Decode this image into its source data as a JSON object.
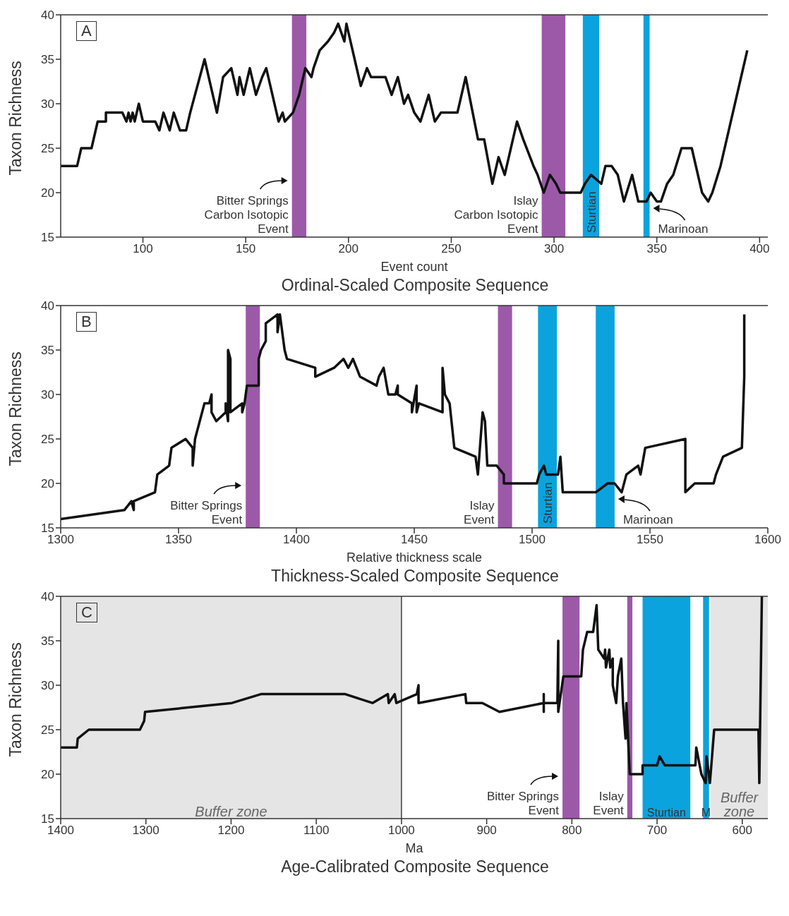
{
  "chart_data": [
    {
      "type": "line",
      "title": "Ordinal-Scaled Composite Sequence",
      "xlabel": "Event count",
      "ylabel": "Taxon Richness",
      "annotations": [
        "A"
      ],
      "xlim": [
        60,
        404
      ],
      "xticks": [
        100,
        150,
        200,
        250,
        300,
        350,
        400
      ],
      "ylim": [
        15,
        40
      ],
      "yticks": [
        15,
        20,
        25,
        30,
        35,
        40
      ],
      "series": [
        {
          "color": "#111111",
          "x": [
            60,
            68,
            70,
            75,
            78,
            82,
            82,
            90,
            92,
            93,
            94,
            95,
            96,
            98,
            100,
            106,
            108,
            110,
            113,
            115,
            118,
            121,
            123,
            130,
            136,
            139,
            143,
            146,
            147,
            149,
            152,
            155,
            158,
            160,
            166,
            168,
            169,
            173,
            176,
            179,
            182,
            183,
            186,
            190,
            193,
            195,
            198,
            199,
            206,
            209,
            211,
            218,
            221,
            224,
            227,
            229,
            232,
            235,
            239,
            242,
            245,
            253,
            257,
            263,
            266,
            270,
            273,
            276,
            282,
            285,
            290,
            292,
            295,
            298,
            301,
            303,
            313,
            315,
            318,
            323,
            325,
            328,
            331,
            334,
            338,
            341,
            345,
            347,
            350,
            352,
            355,
            358,
            362,
            367,
            372,
            375,
            377,
            381,
            394
          ],
          "values": [
            23,
            23,
            25,
            25,
            28,
            28,
            29,
            29,
            28,
            29,
            28,
            29,
            28,
            30,
            28,
            28,
            27,
            29,
            27,
            29,
            27,
            27,
            29,
            35,
            29,
            33,
            34,
            31,
            33,
            31,
            34,
            31,
            33,
            34,
            28,
            29,
            28,
            29,
            31,
            34,
            33,
            34,
            36,
            37,
            38,
            39,
            37,
            39,
            32,
            34,
            33,
            33,
            31,
            33,
            30,
            31,
            29,
            28,
            31,
            28,
            29,
            29,
            33,
            26,
            26,
            21,
            24,
            22,
            28,
            26,
            23,
            22,
            20,
            22,
            21,
            20,
            20,
            21,
            22,
            21,
            23,
            23,
            22,
            19,
            22,
            19,
            19,
            20,
            19,
            19,
            21,
            22,
            25,
            25,
            20,
            19,
            20,
            23,
            36
          ]
        }
      ],
      "bands": [
        {
          "axis": "x",
          "from": 172.5,
          "to": 179.5,
          "color": "#9c59a8",
          "label": "Bitter Springs\nCarbon Isotopic\nEvent"
        },
        {
          "axis": "x",
          "from": 294,
          "to": 305.5,
          "color": "#9c59a8",
          "label": "Islay\nCarbon Isotopic\nEvent"
        },
        {
          "axis": "x",
          "from": 314,
          "to": 322,
          "color": "#0ba3dd",
          "label": "Sturtian"
        },
        {
          "axis": "x",
          "from": 343.5,
          "to": 346.5,
          "color": "#0ba3dd",
          "label": "Marinoan"
        }
      ]
    },
    {
      "type": "line",
      "title": "Thickness-Scaled Composite Sequence",
      "xlabel": "Relative thickness scale",
      "ylabel": "Taxon Richness",
      "annotations": [
        "B"
      ],
      "xlim": [
        1300,
        1600
      ],
      "xticks": [
        1300,
        1350,
        1400,
        1450,
        1500,
        1550,
        1600
      ],
      "ylim": [
        15,
        40
      ],
      "yticks": [
        15,
        20,
        25,
        30,
        35,
        40
      ],
      "series": [
        {
          "color": "#111111",
          "x": [
            1300,
            1327,
            1330,
            1331,
            1331,
            1340,
            1341,
            1346,
            1347,
            1353,
            1356,
            1356,
            1357,
            1359,
            1361,
            1363,
            1364,
            1364,
            1366,
            1370,
            1370,
            1371,
            1371,
            1372,
            1372,
            1377,
            1377,
            1378,
            1379,
            1384,
            1384,
            1385,
            1387,
            1387,
            1392,
            1392,
            1393,
            1395,
            1396,
            1408,
            1408,
            1416,
            1420,
            1422,
            1424,
            1427,
            1434,
            1435,
            1437,
            1439,
            1442,
            1443,
            1443,
            1449,
            1449,
            1451,
            1451,
            1452,
            1462,
            1462,
            1463,
            1465,
            1467,
            1476,
            1477,
            1479,
            1480,
            1481,
            1485,
            1488,
            1488,
            1502,
            1503,
            1505,
            1506,
            1511,
            1512,
            1513,
            1527,
            1532,
            1535,
            1538,
            1540,
            1545,
            1546,
            1548,
            1565,
            1565,
            1569,
            1577,
            1578,
            1581,
            1589,
            1590,
            1590
          ],
          "values": [
            16,
            17,
            18,
            17,
            18,
            19,
            21,
            22,
            24,
            25,
            24,
            22,
            25,
            27,
            29,
            29,
            30,
            28,
            27,
            28,
            29,
            27,
            35,
            34,
            28,
            29,
            28,
            29,
            31,
            31,
            34,
            35,
            36,
            38,
            39,
            37,
            39,
            35,
            34,
            33,
            32,
            33,
            34,
            33,
            34,
            32,
            31,
            32,
            33,
            30,
            30,
            31,
            30,
            29,
            28,
            31,
            28,
            29,
            28,
            33,
            30,
            29,
            24,
            23,
            21,
            28,
            27,
            22,
            22,
            21,
            20,
            20,
            21,
            22,
            21,
            21,
            23,
            19,
            19,
            20,
            20,
            19,
            21,
            22,
            21,
            24,
            25,
            19,
            20,
            20,
            21,
            23,
            24,
            32,
            39
          ]
        }
      ],
      "bands": [
        {
          "axis": "x",
          "from": 1378.5,
          "to": 1384.5,
          "color": "#9c59a8",
          "label": "Bitter Springs\nEvent"
        },
        {
          "axis": "x",
          "from": 1485.5,
          "to": 1491.5,
          "color": "#9c59a8",
          "label": "Islay\nEvent"
        },
        {
          "axis": "x",
          "from": 1502.5,
          "to": 1510.5,
          "color": "#0ba3dd",
          "label": "Sturtian"
        },
        {
          "axis": "x",
          "from": 1527,
          "to": 1535,
          "color": "#0ba3dd",
          "label": "Marinoan"
        }
      ]
    },
    {
      "type": "line",
      "title": "Age-Calibrated Composite Sequence",
      "xlabel": "Ma",
      "ylabel": "Taxon Richness",
      "annotations": [
        "C"
      ],
      "xlim": [
        1400,
        570
      ],
      "xticks": [
        1400,
        1300,
        1200,
        1100,
        1000,
        900,
        800,
        700,
        600
      ],
      "ylim": [
        15,
        40
      ],
      "yticks": [
        15,
        20,
        25,
        30,
        35,
        40
      ],
      "series": [
        {
          "color": "#111111",
          "x": [
            1400,
            1381,
            1380,
            1367,
            1307,
            1302,
            1301,
            1199,
            1165,
            1066,
            1034,
            1016,
            1015,
            1008,
            1006,
            982,
            980,
            980,
            925,
            924,
            905,
            885,
            833,
            833,
            833,
            833,
            817,
            816,
            816,
            810,
            789,
            787,
            782,
            775,
            771,
            769,
            762,
            761,
            760,
            756,
            755,
            752,
            752,
            748,
            746,
            742,
            740,
            737,
            736,
            732,
            717,
            717,
            700,
            697,
            691,
            655,
            654,
            648,
            643,
            642,
            638,
            633,
            630,
            581,
            580,
            577
          ],
          "values": [
            23,
            23,
            24,
            25,
            25,
            26,
            27,
            28,
            29,
            29,
            28,
            29,
            28,
            29,
            28,
            29,
            30,
            28,
            29,
            28,
            28,
            27,
            28,
            29,
            27,
            28,
            28,
            35,
            27,
            31,
            31,
            34,
            36,
            36,
            39,
            34,
            33,
            34,
            32,
            34,
            32,
            33,
            30,
            28,
            31,
            33,
            28,
            24,
            28,
            20,
            20,
            21,
            21,
            22,
            21,
            21,
            23,
            20,
            19,
            22,
            19,
            25,
            25,
            25,
            19,
            40
          ]
        }
      ],
      "bands": [
        {
          "axis": "x",
          "from": 1400,
          "to": 1000,
          "color": "#e5e5e5",
          "label": "Buffer zone"
        },
        {
          "axis": "x",
          "from": 811,
          "to": 791,
          "color": "#9c59a8",
          "label": "Bitter Springs\nEvent"
        },
        {
          "axis": "x",
          "from": 735,
          "to": 729,
          "color": "#9c59a8",
          "label": "Islay\nEvent"
        },
        {
          "axis": "x",
          "from": 717,
          "to": 661,
          "color": "#0ba3dd",
          "label": "Sturtian"
        },
        {
          "axis": "x",
          "from": 646,
          "to": 639,
          "color": "#0ba3dd",
          "label": "M"
        },
        {
          "axis": "x",
          "from": 637,
          "to": 570,
          "color": "#e5e5e5",
          "label": "Buffer\nzone"
        }
      ],
      "ref_lines": [
        {
          "axis": "x",
          "value": 1000,
          "color": "#111111"
        }
      ]
    }
  ]
}
